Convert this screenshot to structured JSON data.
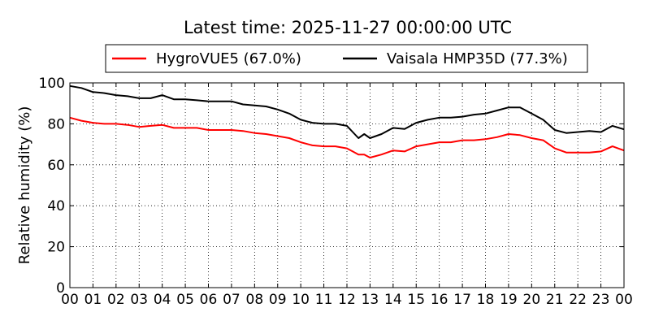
{
  "chart_data": {
    "type": "line",
    "title": "Latest time: 2025-11-27 00:00:00 UTC",
    "ylabel": "Relative humidity (%)",
    "xlabel": "",
    "xlim": [
      0,
      24
    ],
    "ylim": [
      0,
      100
    ],
    "x_ticks": [
      "00",
      "01",
      "02",
      "03",
      "04",
      "05",
      "06",
      "07",
      "08",
      "09",
      "10",
      "11",
      "12",
      "13",
      "14",
      "15",
      "16",
      "17",
      "18",
      "19",
      "20",
      "21",
      "22",
      "23",
      "00"
    ],
    "y_ticks": [
      "0",
      "20",
      "40",
      "60",
      "80",
      "100"
    ],
    "grid": true,
    "legend_position": "top",
    "x": [
      0,
      0.5,
      1,
      1.5,
      2,
      2.5,
      3,
      3.5,
      4,
      4.5,
      5,
      5.5,
      6,
      6.5,
      7,
      7.5,
      8,
      8.5,
      9,
      9.5,
      10,
      10.5,
      11,
      11.5,
      12,
      12.25,
      12.5,
      12.75,
      13,
      13.5,
      14,
      14.5,
      15,
      15.5,
      16,
      16.5,
      17,
      17.5,
      18,
      18.5,
      19,
      19.5,
      20,
      20.5,
      21,
      21.5,
      22,
      22.5,
      23,
      23.5,
      24
    ],
    "series": [
      {
        "name": "HygroVUE5 (67.0%)",
        "color": "#ff0000",
        "values": [
          83,
          81.5,
          80.5,
          80,
          80,
          79.5,
          78.5,
          79,
          79.5,
          78,
          78,
          78,
          77,
          77,
          77,
          76.5,
          75.5,
          75,
          74,
          73,
          71,
          69.5,
          69,
          69,
          68,
          66.5,
          65,
          65,
          63.5,
          65,
          67,
          66.5,
          69,
          70,
          71,
          71,
          72,
          72,
          72.5,
          73.5,
          75,
          74.5,
          73,
          72,
          68,
          66,
          66,
          66,
          66.5,
          69,
          67
        ]
      },
      {
        "name": "Vaisala HMP35D (77.3%)",
        "color": "#000000",
        "values": [
          98.5,
          97.5,
          95.5,
          95,
          94,
          93.5,
          92.5,
          92.5,
          94,
          92,
          92,
          91.5,
          91,
          91,
          91,
          89.5,
          89,
          88.5,
          87,
          85,
          82,
          80.5,
          80,
          80,
          79,
          76,
          73,
          75,
          73,
          75,
          78,
          77.5,
          80.5,
          82,
          83,
          83,
          83.5,
          84.5,
          85,
          86.5,
          88,
          88,
          85,
          82,
          77,
          75.5,
          76,
          76.5,
          76,
          79,
          77.3
        ]
      }
    ]
  }
}
